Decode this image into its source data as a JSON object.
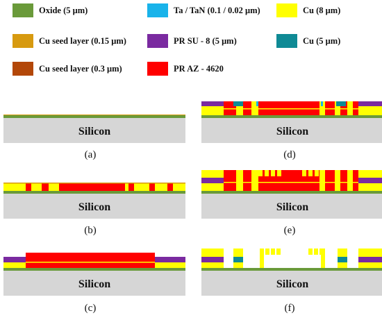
{
  "legend": [
    {
      "label": "Oxide (5 μm)",
      "color": "#6a9a3a"
    },
    {
      "label": "Ta / TaN (0.1 / 0.02 μm)",
      "color": "#19b3ea"
    },
    {
      "label": "Cu (8 μm)",
      "color": "#ffff00"
    },
    {
      "label": "Cu seed layer (0.15 μm)",
      "color": "#d79a10"
    },
    {
      "label": "PR SU - 8 (5 μm)",
      "color": "#7a2aa0"
    },
    {
      "label": "Cu (5 μm)",
      "color": "#0f8a95"
    },
    {
      "label": "Cu seed layer (0.3 μm)",
      "color": "#b34708"
    },
    {
      "label": "PR AZ - 4620",
      "color": "#ff0000"
    }
  ],
  "substrate_label": "Silicon",
  "substrate_color": "#d6d6d6",
  "panels": [
    {
      "id": "a",
      "caption": "(a)"
    },
    {
      "id": "b",
      "caption": "(b)"
    },
    {
      "id": "c",
      "caption": "(c)"
    },
    {
      "id": "d",
      "caption": "(d)"
    },
    {
      "id": "e",
      "caption": "(e)"
    },
    {
      "id": "f",
      "caption": "(f)"
    }
  ]
}
